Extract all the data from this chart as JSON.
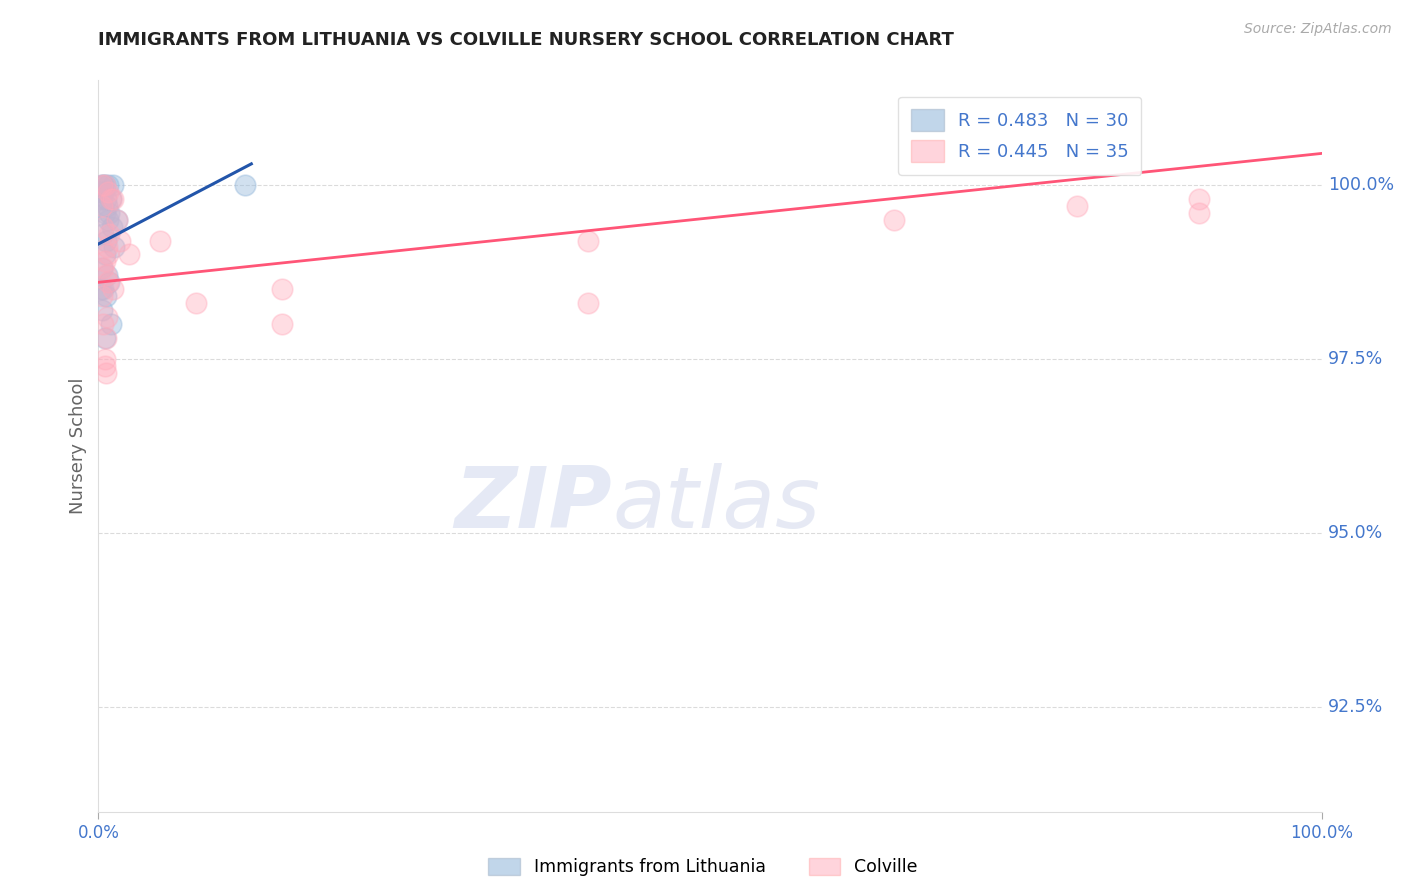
{
  "title": "IMMIGRANTS FROM LITHUANIA VS COLVILLE NURSERY SCHOOL CORRELATION CHART",
  "source": "Source: ZipAtlas.com",
  "ylabel": "Nursery School",
  "ytick_labels": [
    "92.5%",
    "95.0%",
    "97.5%",
    "100.0%"
  ],
  "ytick_values": [
    92.5,
    95.0,
    97.5,
    100.0
  ],
  "xlim": [
    0.0,
    100.0
  ],
  "ylim": [
    91.0,
    101.5
  ],
  "legend_blue_r": "R = 0.483",
  "legend_blue_n": "N = 30",
  "legend_pink_r": "R = 0.445",
  "legend_pink_n": "N = 35",
  "blue_color": "#99BBDD",
  "pink_color": "#FFAABB",
  "blue_line_color": "#2255AA",
  "pink_line_color": "#FF5577",
  "blue_scatter_x": [
    0.2,
    0.3,
    0.3,
    0.3,
    0.4,
    0.4,
    0.4,
    0.5,
    0.5,
    0.5,
    0.5,
    0.6,
    0.6,
    0.6,
    0.7,
    0.7,
    0.8,
    0.8,
    0.9,
    0.9,
    1.0,
    1.0,
    1.1,
    1.2,
    1.3,
    1.5,
    0.2,
    0.3,
    0.4,
    12.0
  ],
  "blue_scatter_y": [
    99.9,
    100.0,
    99.8,
    98.8,
    100.0,
    99.9,
    99.3,
    100.0,
    99.6,
    99.0,
    97.8,
    99.8,
    99.2,
    98.4,
    99.7,
    98.7,
    100.0,
    99.5,
    99.6,
    98.6,
    99.8,
    98.0,
    99.4,
    100.0,
    99.1,
    99.5,
    98.5,
    98.2,
    98.5,
    100.0
  ],
  "pink_scatter_x": [
    0.3,
    0.3,
    0.4,
    0.4,
    0.5,
    0.5,
    0.5,
    0.6,
    0.6,
    0.7,
    0.7,
    0.8,
    0.8,
    0.9,
    1.0,
    1.2,
    1.2,
    1.5,
    1.8,
    2.5,
    5.0,
    8.0,
    15.0,
    15.0,
    40.0,
    40.0,
    65.0,
    80.0,
    90.0,
    90.0,
    0.3,
    0.4,
    0.5,
    0.6,
    0.8
  ],
  "pink_scatter_y": [
    99.7,
    100.0,
    99.4,
    98.8,
    100.0,
    98.9,
    97.5,
    98.7,
    97.8,
    99.1,
    98.1,
    99.9,
    98.6,
    99.3,
    99.8,
    99.8,
    98.5,
    99.5,
    99.2,
    99.0,
    99.2,
    98.3,
    98.5,
    98.0,
    99.2,
    98.3,
    99.5,
    99.7,
    99.8,
    99.6,
    98.4,
    98.0,
    97.4,
    97.3,
    99.0
  ],
  "blue_trend_x0": 0.0,
  "blue_trend_y0": 99.15,
  "blue_trend_x1": 12.5,
  "blue_trend_y1": 100.3,
  "pink_trend_x0": 0.0,
  "pink_trend_y0": 98.6,
  "pink_trend_x1": 100.0,
  "pink_trend_y1": 100.45,
  "grid_color": "#CCCCCC",
  "title_color": "#222222",
  "axis_label_color": "#666666",
  "right_tick_color": "#4477CC",
  "bottom_tick_color": "#4477CC",
  "legend_r_color": "#333333",
  "legend_n_color": "#4477CC"
}
